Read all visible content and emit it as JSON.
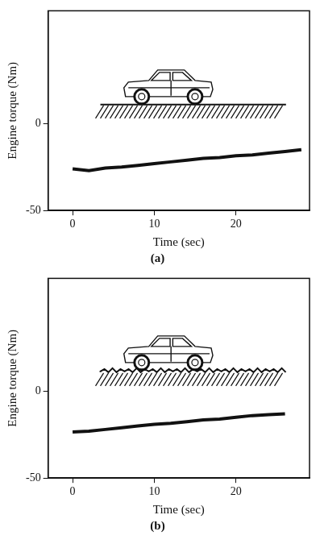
{
  "chart_data": [
    {
      "type": "line",
      "title": "(a)",
      "x_label": "Time (sec)",
      "y_label": "Engine torque (Nm)",
      "x": [
        0,
        2,
        4,
        6,
        8,
        10,
        12,
        14,
        16,
        18,
        20,
        22,
        24,
        26,
        28
      ],
      "values": [
        -26,
        -27,
        -25.5,
        -25,
        -24,
        -23,
        -22,
        -21,
        -20,
        -19.5,
        -18.5,
        -18,
        -17,
        -16,
        -15
      ],
      "color": "#111111",
      "marker": "none",
      "xlim": [
        -3,
        29
      ],
      "xticks": [
        0,
        10,
        20
      ],
      "ylim": [
        -50,
        65
      ],
      "yticks": [
        -50,
        0
      ],
      "grid": false
    },
    {
      "type": "line",
      "title": "(b)",
      "x_label": "Time (sec)",
      "y_label": "Engine torque (Nm)",
      "x": [
        0,
        2,
        4,
        6,
        8,
        10,
        12,
        14,
        16,
        18,
        20,
        22,
        24,
        26
      ],
      "values": [
        -23.5,
        -23,
        -22,
        -21,
        -20,
        -19,
        -18.5,
        -17.5,
        -16.5,
        -16,
        -15,
        -14,
        -13.5,
        -13
      ],
      "color": "#111111",
      "marker": "none",
      "xlim": [
        -3,
        29
      ],
      "xticks": [
        0,
        10,
        20
      ],
      "ylim": [
        -50,
        65
      ],
      "yticks": [
        -50,
        0
      ],
      "grid": false
    }
  ]
}
